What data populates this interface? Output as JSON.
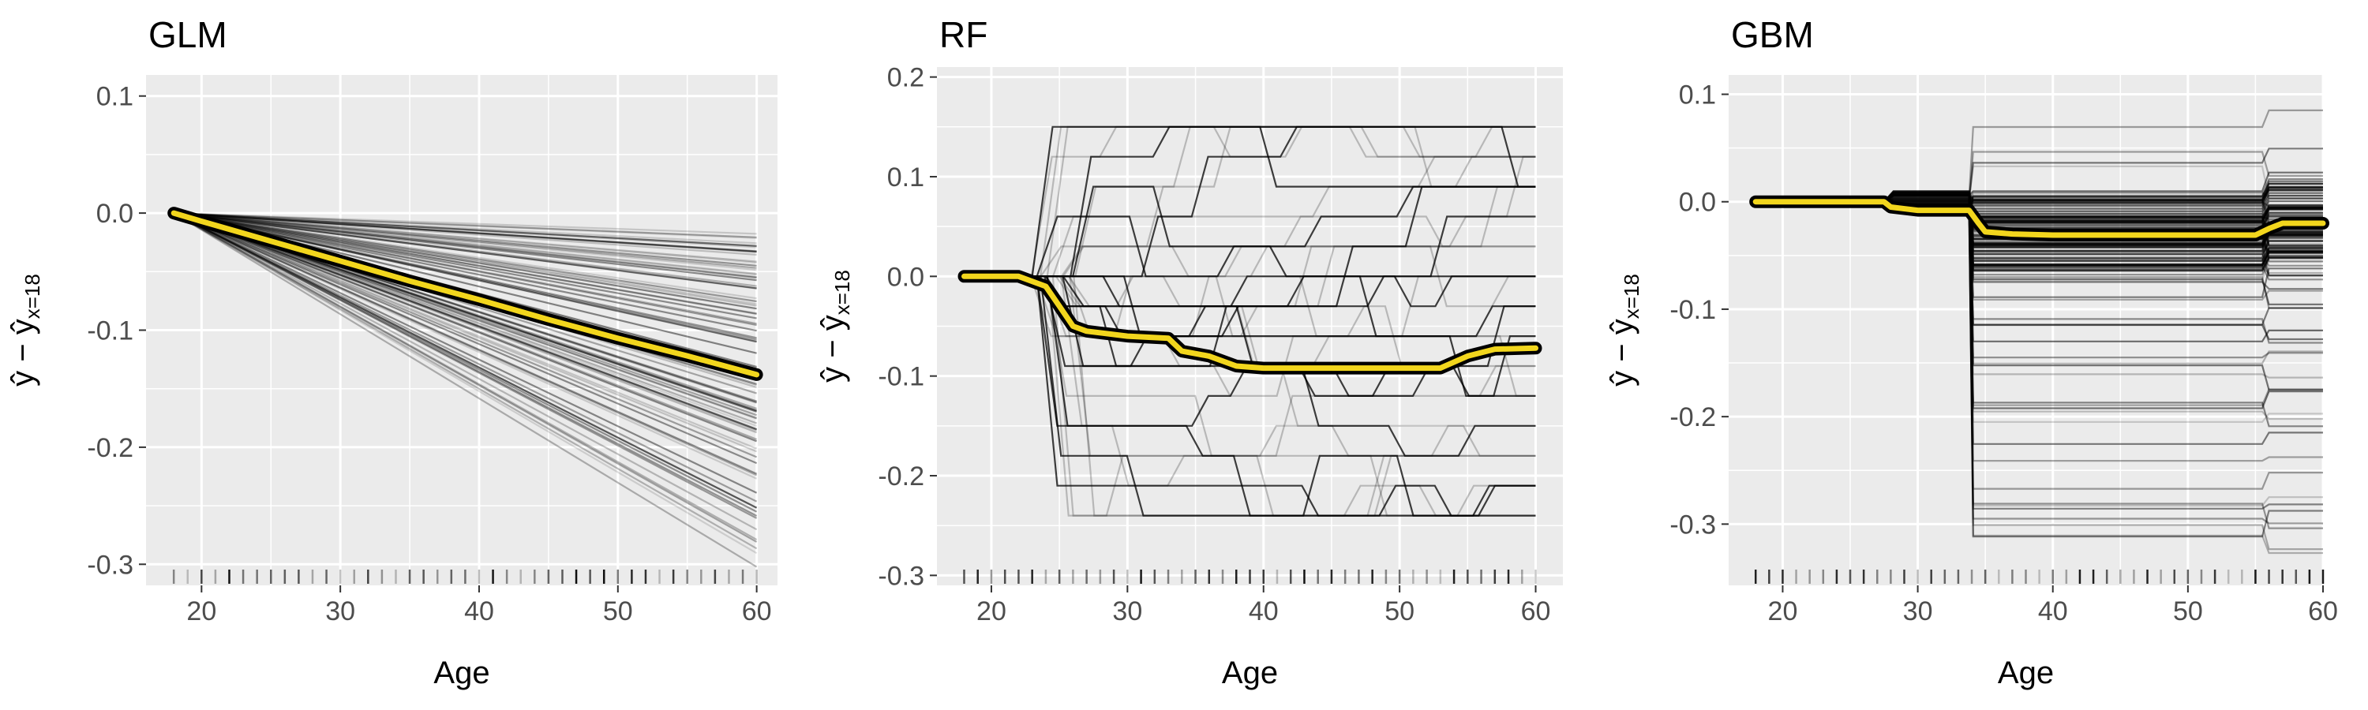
{
  "figure": {
    "xlabel": "Age",
    "ylabel_main": "ŷ − ŷ",
    "ylabel_sub": "x=18"
  },
  "colors": {
    "panel_bg": "#ebebeb",
    "grid": "#ffffff",
    "ice_line": "#000000",
    "pd_outline": "#000000",
    "pd_line": "#f2d61d"
  },
  "chart_data": [
    {
      "type": "line",
      "title": "GLM",
      "xlabel": "Age",
      "xlim": [
        16,
        61.5
      ],
      "ylim": [
        -0.318,
        0.118
      ],
      "xticks": [
        20,
        30,
        40,
        50,
        60
      ],
      "yticks": [
        0.1,
        0.0,
        -0.1,
        -0.2,
        -0.3
      ],
      "ytick_labels": [
        "0.1",
        "0.0",
        "-0.1",
        "-0.2",
        "-0.3"
      ],
      "ice": {
        "kind": "linear",
        "count": 90,
        "x_start": 18,
        "x_end": 60,
        "end_min": -0.305,
        "end_max": -0.015
      },
      "pd": {
        "x": [
          18,
          20,
          25,
          30,
          35,
          40,
          45,
          50,
          55,
          60
        ],
        "y": [
          0.0,
          -0.007,
          -0.024,
          -0.041,
          -0.058,
          -0.074,
          -0.091,
          -0.107,
          -0.122,
          -0.138
        ]
      },
      "rug": [
        18,
        19,
        20,
        21,
        22,
        23,
        24,
        25,
        26,
        27,
        28,
        29,
        30,
        31,
        32,
        33,
        34,
        35,
        36,
        37,
        38,
        39,
        40,
        41,
        42,
        43,
        44,
        45,
        46,
        47,
        48,
        49,
        50,
        51,
        52,
        53,
        54,
        55,
        56,
        57,
        58,
        59,
        60
      ]
    },
    {
      "type": "line",
      "title": "RF",
      "xlabel": "Age",
      "xlim": [
        16,
        62
      ],
      "ylim": [
        -0.31,
        0.21
      ],
      "xticks": [
        20,
        30,
        40,
        50,
        60
      ],
      "yticks": [
        0.2,
        0.1,
        0.0,
        -0.1,
        -0.2,
        -0.3
      ],
      "ytick_labels": [
        "0.2",
        "0.1",
        "0.0",
        "-0.1",
        "-0.2",
        "-0.3"
      ],
      "ice": {
        "kind": "step",
        "count": 38,
        "x_start": 18,
        "x_end": 60,
        "levels": [
          0.15,
          0.12,
          0.09,
          0.06,
          0.03,
          0.0,
          -0.03,
          -0.06,
          -0.09,
          -0.12,
          -0.15,
          -0.18,
          -0.21,
          -0.24
        ]
      },
      "pd": {
        "x": [
          18,
          22,
          24,
          25,
          26,
          27,
          30,
          33,
          34,
          36,
          38,
          40,
          45,
          50,
          53,
          55,
          57,
          60
        ],
        "y": [
          0.0,
          0.0,
          -0.01,
          -0.03,
          -0.05,
          -0.055,
          -0.06,
          -0.062,
          -0.075,
          -0.08,
          -0.09,
          -0.092,
          -0.092,
          -0.092,
          -0.092,
          -0.08,
          -0.073,
          -0.072
        ]
      },
      "rug": [
        18,
        19,
        20,
        21,
        22,
        23,
        24,
        25,
        26,
        27,
        28,
        29,
        30,
        31,
        32,
        33,
        34,
        35,
        36,
        37,
        38,
        39,
        40,
        41,
        42,
        43,
        44,
        45,
        46,
        47,
        48,
        49,
        50,
        51,
        52,
        53,
        54,
        55,
        56,
        57,
        58,
        59,
        60
      ]
    },
    {
      "type": "line",
      "title": "GBM",
      "xlabel": "Age",
      "xlim": [
        16,
        60
      ],
      "ylim": [
        -0.357,
        0.118
      ],
      "xticks": [
        20,
        30,
        40,
        50,
        60
      ],
      "yticks": [
        0.1,
        0.0,
        -0.1,
        -0.2,
        -0.3
      ],
      "ytick_labels": [
        "0.1",
        "0.0",
        "-0.1",
        "-0.2",
        "-0.3"
      ],
      "ice": {
        "kind": "jump",
        "count": 90,
        "x_start": 18,
        "x_end": 60,
        "jump_at": 34,
        "late_at": 55.5,
        "min": -0.34,
        "max": 0.085
      },
      "pd": {
        "x": [
          18,
          27.5,
          28,
          30,
          33.8,
          34.5,
          35,
          37,
          40,
          45,
          50,
          55,
          56,
          57,
          60
        ],
        "y": [
          0.0,
          0.0,
          -0.005,
          -0.008,
          -0.008,
          -0.02,
          -0.028,
          -0.03,
          -0.031,
          -0.031,
          -0.031,
          -0.031,
          -0.025,
          -0.02,
          -0.02
        ]
      },
      "rug": [
        18,
        19,
        20,
        21,
        22,
        23,
        24,
        25,
        26,
        27,
        28,
        29,
        30,
        31,
        32,
        33,
        34,
        35,
        36,
        37,
        38,
        39,
        40,
        41,
        42,
        43,
        44,
        45,
        46,
        47,
        48,
        49,
        50,
        51,
        52,
        53,
        54,
        55,
        56,
        57,
        58,
        59,
        60
      ]
    }
  ]
}
